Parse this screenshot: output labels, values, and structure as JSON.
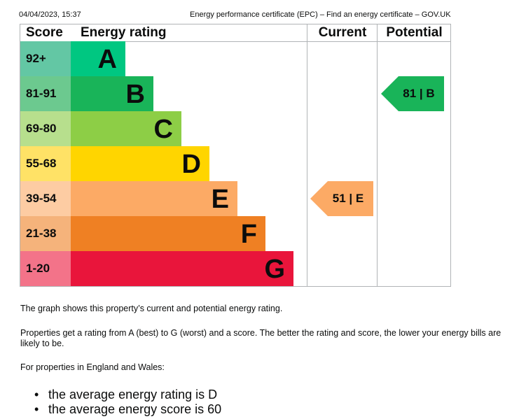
{
  "print_header": {
    "date": "04/04/2023, 15:37",
    "title": "Energy performance certificate (EPC) – Find an energy certificate – GOV.UK"
  },
  "epc_table": {
    "headers": {
      "score": "Score",
      "rating": "Energy rating",
      "current": "Current",
      "potential": "Potential"
    },
    "bands": [
      {
        "score": "92+",
        "letter": "A",
        "bar_color": "#00c781",
        "score_color": "#63c7a4"
      },
      {
        "score": "81-91",
        "letter": "B",
        "bar_color": "#19b459",
        "score_color": "#6cc98f"
      },
      {
        "score": "69-80",
        "letter": "C",
        "bar_color": "#8dce46",
        "score_color": "#b7df8d"
      },
      {
        "score": "55-68",
        "letter": "D",
        "bar_color": "#ffd500",
        "score_color": "#ffe266"
      },
      {
        "score": "39-54",
        "letter": "E",
        "bar_color": "#fcaa65",
        "score_color": "#fdcca3"
      },
      {
        "score": "21-38",
        "letter": "F",
        "bar_color": "#ef8023",
        "score_color": "#f5b37b"
      },
      {
        "score": "1-20",
        "letter": "G",
        "bar_color": "#e9153b",
        "score_color": "#f37389"
      }
    ],
    "current": {
      "label": "51 | E",
      "color": "#fcaa65"
    },
    "potential": {
      "label": "81 | B",
      "color": "#19b459"
    }
  },
  "description": {
    "p1": "The graph shows this property’s current and potential energy rating.",
    "p2": "Properties get a rating from A (best) to G (worst) and a score. The better the rating and score, the lower your energy bills are likely to be.",
    "p3": "For properties in England and Wales:",
    "bullets": [
      "the average energy rating is D",
      "the average energy score is 60"
    ]
  }
}
